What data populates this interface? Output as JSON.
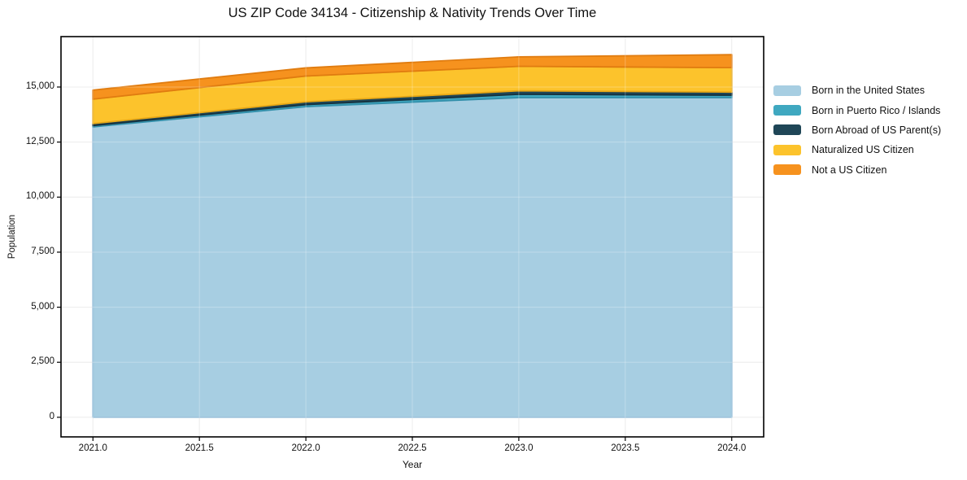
{
  "title": "US ZIP Code 34134 - Citizenship & Nativity Trends Over Time",
  "colors": {
    "background": "#ffffff",
    "frame": "#000000",
    "grid_under": "#e6e6e6",
    "grid_over": "rgba(255,255,255,0.28)",
    "tick": "#000000",
    "text": "#111111"
  },
  "chart_data": {
    "type": "area",
    "stacked": true,
    "title": "US ZIP Code 34134 - Citizenship & Nativity Trends Over Time",
    "xlabel": "Year",
    "ylabel": "Population",
    "x": [
      2021,
      2022,
      2023,
      2024
    ],
    "series": [
      {
        "name": "Born in the United States",
        "color": "#a7cee2",
        "edge": "#8cb9d6",
        "values": [
          13190,
          14110,
          14520,
          14520
        ]
      },
      {
        "name": "Born in Puerto Rico / Islands",
        "color": "#3fa8c0",
        "edge": "#3390ab",
        "values": [
          60,
          90,
          150,
          110
        ]
      },
      {
        "name": "Born Abroad of US Parent(s)",
        "color": "#1f4657",
        "edge": "#16323f",
        "values": [
          90,
          130,
          160,
          140
        ]
      },
      {
        "name": "Naturalized US Citizen",
        "color": "#fcc32c",
        "edge": "#e8a816",
        "values": [
          1110,
          1170,
          1110,
          1110
        ]
      },
      {
        "name": "Not a US Citizen",
        "color": "#f6921e",
        "edge": "#e07c10",
        "values": [
          410,
          370,
          430,
          590
        ]
      }
    ],
    "stack_totals": [
      14860,
      15870,
      16370,
      16470
    ],
    "xlim": [
      2020.85,
      2024.15
    ],
    "ylim": [
      -890,
      17290
    ],
    "xticks": [
      2021.0,
      2021.5,
      2022.0,
      2022.5,
      2023.0,
      2023.5,
      2024.0
    ],
    "xtick_labels": [
      "2021.0",
      "2021.5",
      "2022.0",
      "2022.5",
      "2023.0",
      "2023.5",
      "2024.0"
    ],
    "yticks": [
      0,
      2500,
      5000,
      7500,
      10000,
      12500,
      15000
    ],
    "ytick_labels": [
      "0",
      "2,500",
      "5,000",
      "7,500",
      "10,000",
      "12,500",
      "15,000"
    ],
    "grid": true,
    "legend_position": "right"
  }
}
